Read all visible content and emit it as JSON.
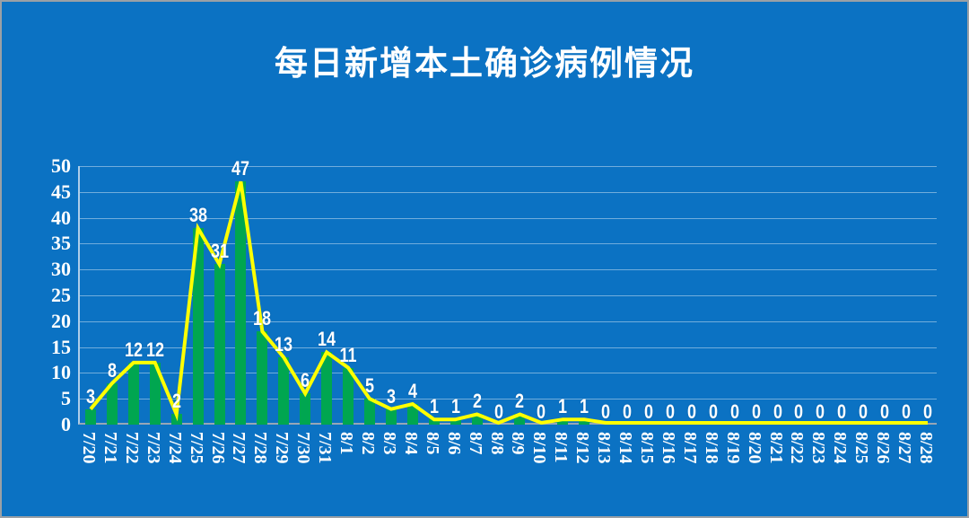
{
  "title": "每日新增本土确诊病例情况",
  "colors": {
    "background": "#0B72C3",
    "bar": "#00A650",
    "line": "#FFFF00",
    "text": "#FFFFFF",
    "gridline": "#7FAEDC",
    "axis": "#97A6B6",
    "frame_border": "#9AA0A6"
  },
  "chart_data": {
    "type": "bar",
    "line_overlay": true,
    "title": "每日新增本土确诊病例情况",
    "xlabel": "",
    "ylabel": "",
    "categories": [
      "7/20",
      "7/21",
      "7/22",
      "7/23",
      "7/24",
      "7/25",
      "7/26",
      "7/27",
      "7/28",
      "7/29",
      "7/30",
      "7/31",
      "8/1",
      "8/2",
      "8/3",
      "8/4",
      "8/5",
      "8/6",
      "8/7",
      "8/8",
      "8/9",
      "8/10",
      "8/11",
      "8/12",
      "8/13",
      "8/14",
      "8/15",
      "8/16",
      "8/17",
      "8/18",
      "8/19",
      "8/20",
      "8/21",
      "8/22",
      "8/23",
      "8/24",
      "8/25",
      "8/26",
      "8/27",
      "8/28"
    ],
    "values": [
      3,
      8,
      12,
      12,
      2,
      38,
      31,
      47,
      18,
      13,
      6,
      14,
      11,
      5,
      3,
      4,
      1,
      1,
      2,
      0,
      2,
      0,
      1,
      1,
      0,
      0,
      0,
      0,
      0,
      0,
      0,
      0,
      0,
      0,
      0,
      0,
      0,
      0,
      0,
      0
    ],
    "data_labels": [
      3,
      8,
      12,
      12,
      2,
      38,
      31,
      47,
      18,
      13,
      6,
      14,
      11,
      5,
      3,
      4,
      1,
      1,
      2,
      0,
      2,
      0,
      1,
      1,
      0,
      0,
      0,
      0,
      0,
      0,
      0,
      0,
      0,
      0,
      0,
      0,
      0,
      0,
      0,
      0
    ],
    "ylim": [
      0,
      50
    ],
    "yticks": [
      0,
      5,
      10,
      15,
      20,
      25,
      30,
      35,
      40,
      45,
      50
    ],
    "grid": true,
    "legend": "none",
    "x_tick_rotation_deg": 90
  }
}
